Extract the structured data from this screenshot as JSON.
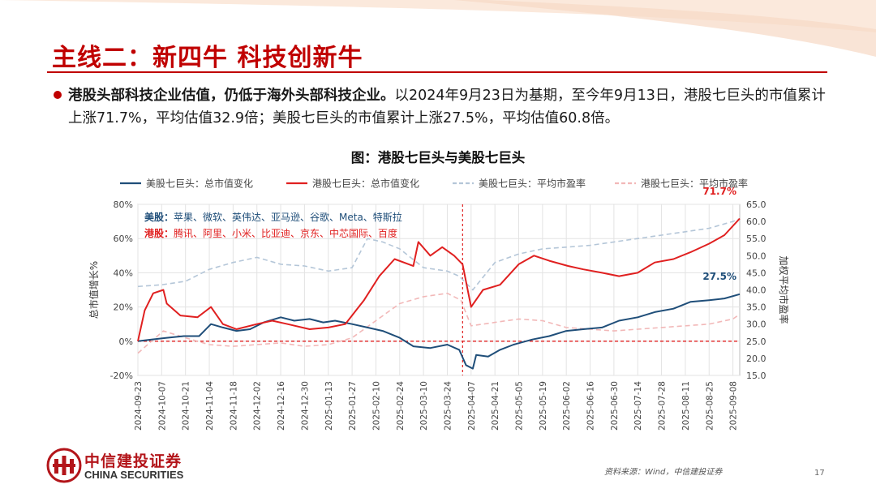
{
  "slide": {
    "title": "主线二：新四牛  科技创新牛",
    "bullet_bold": "港股头部科技企业估值，仍低于海外头部科技企业。",
    "bullet_text": "以2024年9月23日为基期，至今年9月13日，港股七巨头的市值累计上涨71.7%，平均估值32.9倍；美股七巨头的市值累计上涨27.5%，平均估值60.8倍。",
    "source": "资料来源：Wind，中信建投证券",
    "page_number": "17",
    "logo_cn": "中信建投证券",
    "logo_en": "CHINA SECURITIES",
    "accent_color": "#c00000"
  },
  "chart_data": {
    "type": "line",
    "title": "图：港股七巨头与美股七巨头",
    "ylabel_left": "总市值增长%",
    "ylabel_right": "加权平均市盈率",
    "ylim_left": [
      -20,
      80
    ],
    "yticks_left": [
      "80%",
      "60%",
      "40%",
      "20%",
      "0%",
      "-20%"
    ],
    "ylim_right": [
      15,
      65
    ],
    "yticks_right": [
      "65.0",
      "60.0",
      "55.0",
      "50.0",
      "45.0",
      "40.0",
      "35.0",
      "30.0",
      "25.0",
      "20.0",
      "15.0"
    ],
    "x_start": "2024-09-23",
    "x_end": "2025-09-12",
    "xticks": [
      "2024-09-23",
      "2024-10-07",
      "2024-10-21",
      "2024-11-04",
      "2024-11-18",
      "2024-12-02",
      "2024-12-16",
      "2024-12-30",
      "2025-01-13",
      "2025-01-27",
      "2025-02-10",
      "2025-02-24",
      "2025-03-10",
      "2025-03-24",
      "2025-04-07",
      "2025-04-21",
      "2025-05-05",
      "2025-05-19",
      "2025-06-02",
      "2025-06-16",
      "2025-06-30",
      "2025-07-14",
      "2025-07-28",
      "2025-08-11",
      "2025-08-25",
      "2025-09-08"
    ],
    "legend": [
      {
        "name": "美股七巨头：总市值变化",
        "color": "#1f4e79",
        "style": "solid"
      },
      {
        "name": "港股七巨头：总市值变化",
        "color": "#e02020",
        "style": "solid"
      },
      {
        "name": "美股七巨头：平均市盈率",
        "color": "#b4c6d8",
        "style": "dashed"
      },
      {
        "name": "港股七巨头：平均市盈率",
        "color": "#f2b8b8",
        "style": "dashed"
      }
    ],
    "annotation_us": {
      "prefix": "美股：",
      "names": "苹果、微软、英伟达、亚马逊、谷歌、Meta、特斯拉"
    },
    "annotation_hk": {
      "prefix": "港股：",
      "names": "腾讯、阿里、小米、比亚迪、京东、中芯国际、百度"
    },
    "end_label_hk": "71.7%",
    "end_label_us": "27.5%",
    "vline_date": "2025-04-02",
    "series": [
      {
        "name": "美股七巨头：总市值变化",
        "axis": "left",
        "x": [
          "2024-09-23",
          "2024-10-01",
          "2024-10-10",
          "2024-10-20",
          "2024-10-29",
          "2024-11-05",
          "2024-11-12",
          "2024-11-20",
          "2024-11-28",
          "2024-12-06",
          "2024-12-16",
          "2024-12-24",
          "2025-01-02",
          "2025-01-10",
          "2025-01-17",
          "2025-01-27",
          "2025-02-05",
          "2025-02-14",
          "2025-02-24",
          "2025-03-04",
          "2025-03-14",
          "2025-03-24",
          "2025-03-31",
          "2025-04-04",
          "2025-04-08",
          "2025-04-10",
          "2025-04-17",
          "2025-04-24",
          "2025-05-02",
          "2025-05-13",
          "2025-05-23",
          "2025-06-02",
          "2025-06-12",
          "2025-06-23",
          "2025-07-03",
          "2025-07-14",
          "2025-07-24",
          "2025-08-04",
          "2025-08-14",
          "2025-08-25",
          "2025-09-03",
          "2025-09-12"
        ],
        "y": [
          0,
          1,
          2,
          3,
          3,
          10,
          8,
          6,
          7,
          11,
          14,
          12,
          13,
          11,
          12,
          10,
          8,
          6,
          2,
          -3,
          -4,
          -2,
          -5,
          -14,
          -16,
          -8,
          -9,
          -5,
          -2,
          1,
          3,
          6,
          7,
          8,
          12,
          14,
          17,
          19,
          23,
          24,
          25,
          27.5
        ]
      },
      {
        "name": "港股七巨头：总市值变化",
        "axis": "left",
        "x": [
          "2024-09-23",
          "2024-09-27",
          "2024-10-02",
          "2024-10-08",
          "2024-10-10",
          "2024-10-18",
          "2024-10-28",
          "2024-11-05",
          "2024-11-12",
          "2024-11-20",
          "2024-12-02",
          "2024-12-11",
          "2024-12-20",
          "2025-01-02",
          "2025-01-13",
          "2025-01-23",
          "2025-02-03",
          "2025-02-12",
          "2025-02-21",
          "2025-03-04",
          "2025-03-07",
          "2025-03-14",
          "2025-03-21",
          "2025-03-28",
          "2025-04-02",
          "2025-04-07",
          "2025-04-14",
          "2025-04-24",
          "2025-05-05",
          "2025-05-14",
          "2025-05-23",
          "2025-06-03",
          "2025-06-12",
          "2025-06-23",
          "2025-07-03",
          "2025-07-14",
          "2025-07-24",
          "2025-08-04",
          "2025-08-14",
          "2025-08-25",
          "2025-09-03",
          "2025-09-12"
        ],
        "y": [
          0,
          18,
          28,
          30,
          22,
          15,
          14,
          20,
          10,
          7,
          10,
          12,
          10,
          7,
          8,
          10,
          24,
          38,
          48,
          44,
          58,
          50,
          55,
          50,
          45,
          20,
          30,
          33,
          45,
          50,
          47,
          44,
          42,
          40,
          38,
          40,
          46,
          48,
          52,
          57,
          62,
          71.7
        ]
      },
      {
        "name": "美股七巨头：平均市盈率",
        "axis": "right",
        "x": [
          "2024-09-23",
          "2024-10-07",
          "2024-10-21",
          "2024-11-04",
          "2024-11-18",
          "2024-12-02",
          "2024-12-16",
          "2024-12-30",
          "2025-01-13",
          "2025-01-27",
          "2025-02-05",
          "2025-02-14",
          "2025-02-24",
          "2025-03-10",
          "2025-03-24",
          "2025-03-31",
          "2025-04-04",
          "2025-04-08",
          "2025-04-21",
          "2025-05-05",
          "2025-05-19",
          "2025-06-02",
          "2025-06-16",
          "2025-06-30",
          "2025-07-14",
          "2025-07-28",
          "2025-08-11",
          "2025-08-25",
          "2025-09-08",
          "2025-09-12"
        ],
        "y": [
          41.0,
          41.5,
          42.5,
          46.0,
          48.0,
          49.5,
          47.5,
          47.0,
          45.5,
          46.5,
          55.0,
          54.0,
          52.0,
          46.5,
          45.5,
          44.0,
          42.0,
          40.0,
          48.0,
          50.5,
          52.0,
          52.5,
          53.0,
          54.0,
          55.0,
          56.0,
          57.0,
          58.0,
          60.0,
          60.8
        ]
      },
      {
        "name": "港股七巨头：平均市盈率",
        "axis": "right",
        "x": [
          "2024-09-23",
          "2024-10-01",
          "2024-10-08",
          "2024-10-21",
          "2024-11-04",
          "2024-11-18",
          "2024-12-02",
          "2024-12-16",
          "2024-12-30",
          "2025-01-13",
          "2025-01-27",
          "2025-02-10",
          "2025-02-24",
          "2025-03-10",
          "2025-03-24",
          "2025-04-01",
          "2025-04-07",
          "2025-04-21",
          "2025-05-05",
          "2025-05-19",
          "2025-06-02",
          "2025-06-16",
          "2025-06-30",
          "2025-07-14",
          "2025-07-28",
          "2025-08-11",
          "2025-08-25",
          "2025-09-08",
          "2025-09-12"
        ],
        "y": [
          21.5,
          25.0,
          28.0,
          26.0,
          24.0,
          23.5,
          24.0,
          24.5,
          23.5,
          24.0,
          26.0,
          31.0,
          36.0,
          38.0,
          39.0,
          37.0,
          29.5,
          30.5,
          31.5,
          31.0,
          29.0,
          28.5,
          28.0,
          28.5,
          29.0,
          29.5,
          30.0,
          31.5,
          32.9
        ]
      }
    ]
  }
}
